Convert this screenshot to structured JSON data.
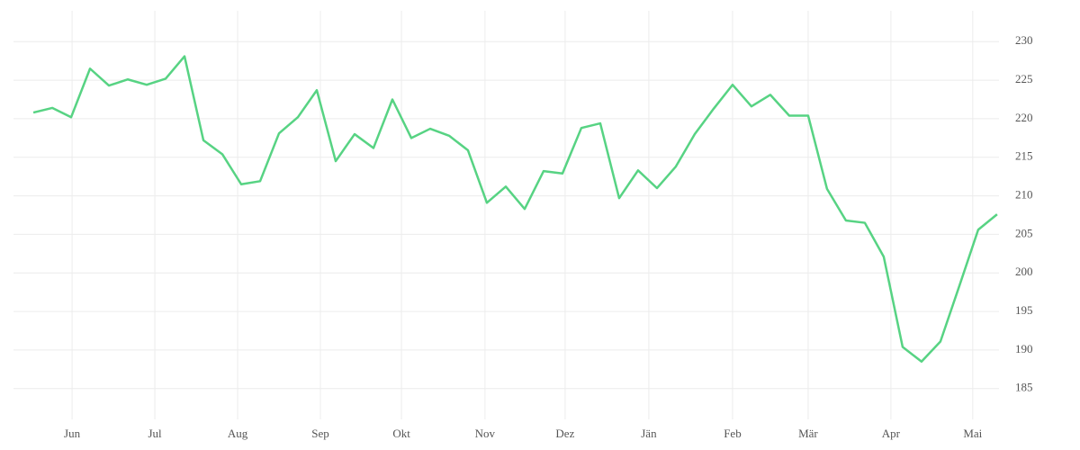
{
  "chart_data": {
    "type": "line",
    "x": [
      0,
      1,
      2,
      3,
      4,
      5,
      6,
      7,
      8,
      9,
      10,
      11,
      12,
      13,
      14,
      15,
      16,
      17,
      18,
      19,
      20,
      21,
      22,
      23,
      24,
      25,
      26,
      27,
      28,
      29,
      30,
      31,
      32,
      33,
      34,
      35,
      36,
      37,
      38,
      39,
      40,
      41,
      42,
      43,
      44,
      45,
      46,
      47,
      48,
      49,
      50,
      51
    ],
    "series": [
      {
        "color": "#57d383",
        "values": [
          220.8,
          221.4,
          220.2,
          226.5,
          224.3,
          225.1,
          224.4,
          225.2,
          228.1,
          217.2,
          215.4,
          211.5,
          211.9,
          218.1,
          220.2,
          223.7,
          214.5,
          218.0,
          216.2,
          222.5,
          217.5,
          218.7,
          217.8,
          215.9,
          209.1,
          211.2,
          208.3,
          213.2,
          212.9,
          218.8,
          219.4,
          209.7,
          213.3,
          211.0,
          213.8,
          218.0,
          221.3,
          224.4,
          221.6,
          223.1,
          220.4,
          220.4,
          210.9,
          206.8,
          206.5,
          202.1,
          190.4,
          188.5,
          191.1,
          198.3,
          205.6,
          207.6
        ]
      }
    ],
    "xlim": [
      -1.05,
      51.1
    ],
    "xticks": [
      {
        "value": 2.05,
        "label": "Jun"
      },
      {
        "value": 6.43,
        "label": "Jul"
      },
      {
        "value": 10.81,
        "label": "Aug"
      },
      {
        "value": 15.19,
        "label": "Sep"
      },
      {
        "value": 19.48,
        "label": "Okt"
      },
      {
        "value": 23.9,
        "label": "Nov"
      },
      {
        "value": 28.14,
        "label": "Dez"
      },
      {
        "value": 32.57,
        "label": "Jän"
      },
      {
        "value": 37.0,
        "label": "Feb"
      },
      {
        "value": 41.0,
        "label": "Mär"
      },
      {
        "value": 45.38,
        "label": "Apr"
      },
      {
        "value": 49.71,
        "label": "Mai"
      }
    ],
    "ylim": [
      181,
      234
    ],
    "yticks": [
      185,
      190,
      195,
      200,
      205,
      210,
      215,
      220,
      225,
      230
    ],
    "grid": true
  }
}
